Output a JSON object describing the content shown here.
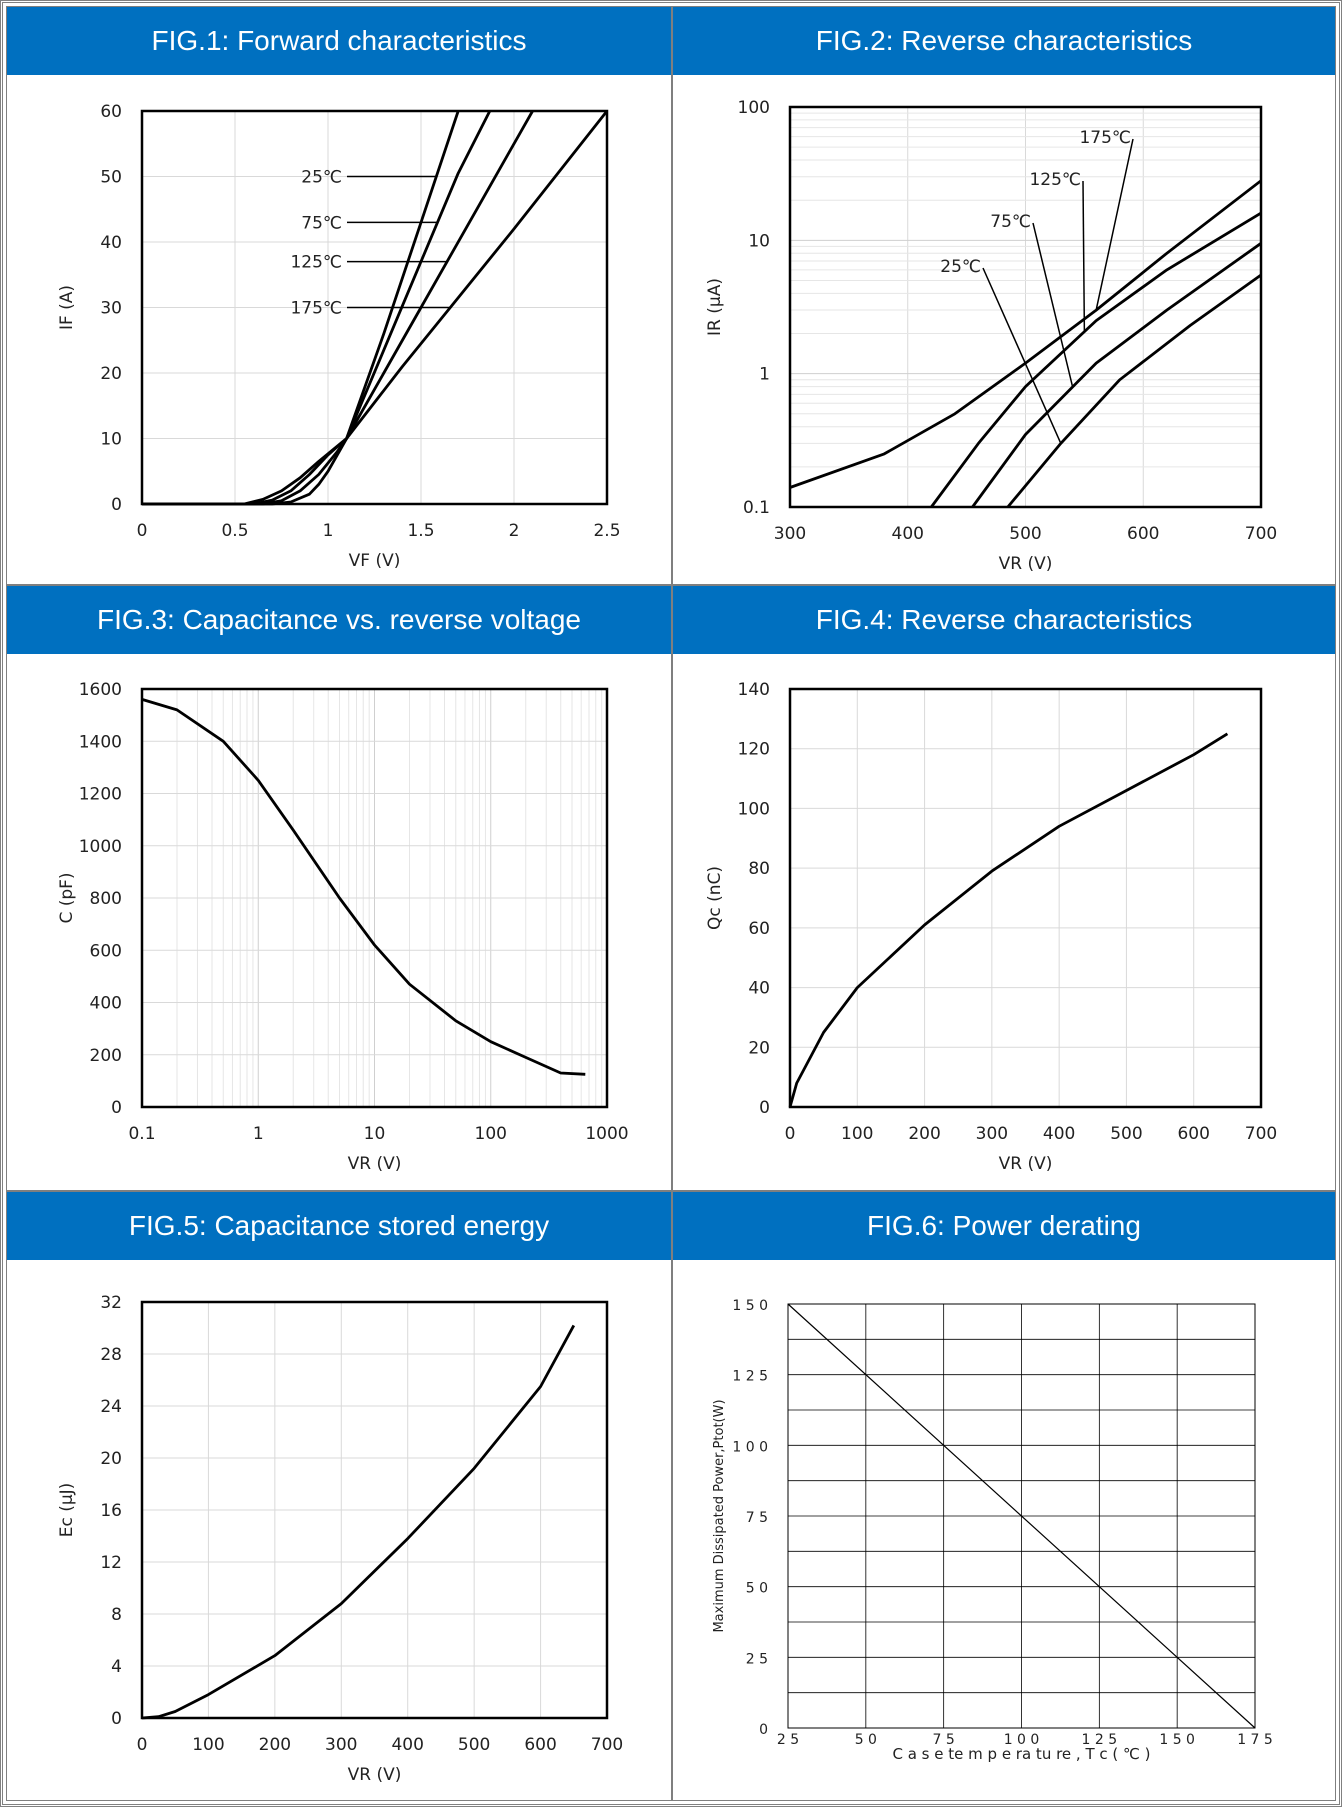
{
  "chart_data": [
    {
      "type": "line",
      "title": "FIG.1: Forward characteristics",
      "xlabel": "VF (V)",
      "ylabel": "IF (A)",
      "xlim": [
        0,
        2.5
      ],
      "ylim": [
        0,
        60
      ],
      "x_ticks": [
        "0",
        "0.5",
        "1",
        "1.5",
        "2",
        "2.5"
      ],
      "y_ticks": [
        "0",
        "10",
        "20",
        "30",
        "40",
        "50",
        "60"
      ],
      "grid": true,
      "series": [
        {
          "name": "25℃",
          "x": [
            0,
            0.7,
            0.8,
            0.9,
            0.95,
            1.0,
            1.05,
            1.1,
            1.3,
            1.5,
            1.7
          ],
          "y": [
            0,
            0,
            0.3,
            1.5,
            3,
            5,
            7.5,
            10,
            26,
            43,
            60
          ]
        },
        {
          "name": "75℃",
          "x": [
            0,
            0.65,
            0.75,
            0.85,
            0.95,
            1.05,
            1.1,
            1.3,
            1.5,
            1.7,
            1.87
          ],
          "y": [
            0,
            0,
            0.5,
            2,
            4.5,
            8,
            10,
            23.5,
            37,
            50.5,
            60
          ]
        },
        {
          "name": "125℃",
          "x": [
            0,
            0.6,
            0.7,
            0.8,
            0.9,
            1.0,
            1.1,
            1.3,
            1.5,
            1.8,
            2.1
          ],
          "y": [
            0,
            0,
            0.6,
            2,
            4.5,
            7.5,
            10,
            20,
            30,
            45,
            60
          ]
        },
        {
          "name": "175℃",
          "x": [
            0,
            0.55,
            0.65,
            0.75,
            0.85,
            0.95,
            1.1,
            1.4,
            1.7,
            2.0,
            2.5
          ],
          "y": [
            0,
            0,
            0.7,
            2,
            4,
            6.5,
            10,
            21,
            31.5,
            42,
            60
          ]
        }
      ]
    },
    {
      "type": "line",
      "title": "FIG.2: Reverse characteristics",
      "xlabel": "VR (V)",
      "ylabel": "IR (μA)",
      "xlim": [
        300,
        700
      ],
      "ylim": [
        0.1,
        100
      ],
      "yscale": "log",
      "x_ticks": [
        "300",
        "400",
        "500",
        "600",
        "700"
      ],
      "y_ticks": [
        "0.1",
        "1",
        "10",
        "100"
      ],
      "grid": true,
      "series": [
        {
          "name": "175℃",
          "x": [
            300,
            380,
            440,
            500,
            560,
            620,
            700
          ],
          "y": [
            0.14,
            0.25,
            0.5,
            1.2,
            3,
            8,
            28
          ]
        },
        {
          "name": "125℃",
          "x": [
            420,
            460,
            500,
            560,
            620,
            700
          ],
          "y": [
            0.1,
            0.3,
            0.8,
            2.5,
            6,
            16
          ]
        },
        {
          "name": "75℃",
          "x": [
            455,
            500,
            560,
            620,
            700
          ],
          "y": [
            0.1,
            0.35,
            1.2,
            3,
            9.5
          ]
        },
        {
          "name": "25℃",
          "x": [
            485,
            530,
            580,
            640,
            700
          ],
          "y": [
            0.1,
            0.3,
            0.9,
            2.3,
            5.5
          ]
        }
      ]
    },
    {
      "type": "line",
      "title": "FIG.3: Capacitance vs. reverse voltage",
      "xlabel": "VR (V)",
      "ylabel": "C (pF)",
      "xlim": [
        0.1,
        1000
      ],
      "ylim": [
        0,
        1600
      ],
      "xscale": "log",
      "x_ticks": [
        "0.1",
        "1",
        "10",
        "100",
        "1000"
      ],
      "y_ticks": [
        "0",
        "200",
        "400",
        "600",
        "800",
        "1000",
        "1200",
        "1400",
        "1600"
      ],
      "grid": true,
      "series": [
        {
          "name": "",
          "x": [
            0.1,
            0.2,
            0.5,
            1,
            2,
            5,
            10,
            20,
            50,
            100,
            200,
            400,
            650
          ],
          "y": [
            1560,
            1520,
            1400,
            1250,
            1060,
            800,
            620,
            470,
            330,
            250,
            190,
            130,
            125
          ]
        }
      ]
    },
    {
      "type": "line",
      "title": "FIG.4: Reverse characteristics",
      "xlabel": "VR (V)",
      "ylabel": "Qc (nC)",
      "xlim": [
        0,
        700
      ],
      "ylim": [
        0,
        140
      ],
      "x_ticks": [
        "0",
        "100",
        "200",
        "300",
        "400",
        "500",
        "600",
        "700"
      ],
      "y_ticks": [
        "0",
        "20",
        "40",
        "60",
        "80",
        "100",
        "120",
        "140"
      ],
      "grid": true,
      "series": [
        {
          "name": "",
          "x": [
            0,
            10,
            50,
            100,
            200,
            300,
            400,
            500,
            600,
            650
          ],
          "y": [
            0,
            8,
            25,
            40,
            61,
            79,
            94,
            106,
            118,
            125
          ]
        }
      ]
    },
    {
      "type": "line",
      "title": "FIG.5: Capacitance stored energy",
      "xlabel": "VR (V)",
      "ylabel": "Ec (μJ)",
      "xlim": [
        0,
        700
      ],
      "ylim": [
        0,
        32
      ],
      "x_ticks": [
        "0",
        "100",
        "200",
        "300",
        "400",
        "500",
        "600",
        "700"
      ],
      "y_ticks": [
        "0",
        "4",
        "8",
        "12",
        "16",
        "20",
        "24",
        "28",
        "32"
      ],
      "grid": true,
      "series": [
        {
          "name": "",
          "x": [
            0,
            25,
            50,
            100,
            200,
            300,
            400,
            500,
            600,
            650
          ],
          "y": [
            0,
            0.1,
            0.5,
            1.8,
            4.8,
            8.8,
            13.8,
            19.2,
            25.5,
            30.2
          ]
        }
      ]
    },
    {
      "type": "line",
      "title": "FIG.6: Power derating",
      "xlabel": "C a s e   te m p e ra tu re , T c ( ℃ )",
      "ylabel": "Maximum Dissipated  Power,Ptot(W)",
      "xlim": [
        25,
        175
      ],
      "ylim": [
        0,
        150
      ],
      "x_ticks": [
        "2 5",
        "5 0",
        "7 5",
        "1 0 0",
        "1 2 5",
        "1 5 0",
        "1 7 5"
      ],
      "y_ticks": [
        "0",
        "2 5",
        "5 0",
        "7 5",
        "1 0 0",
        "1 2 5",
        "1 5 0"
      ],
      "grid": true,
      "series": [
        {
          "name": "",
          "x": [
            25,
            175
          ],
          "y": [
            150,
            0
          ]
        }
      ]
    }
  ]
}
